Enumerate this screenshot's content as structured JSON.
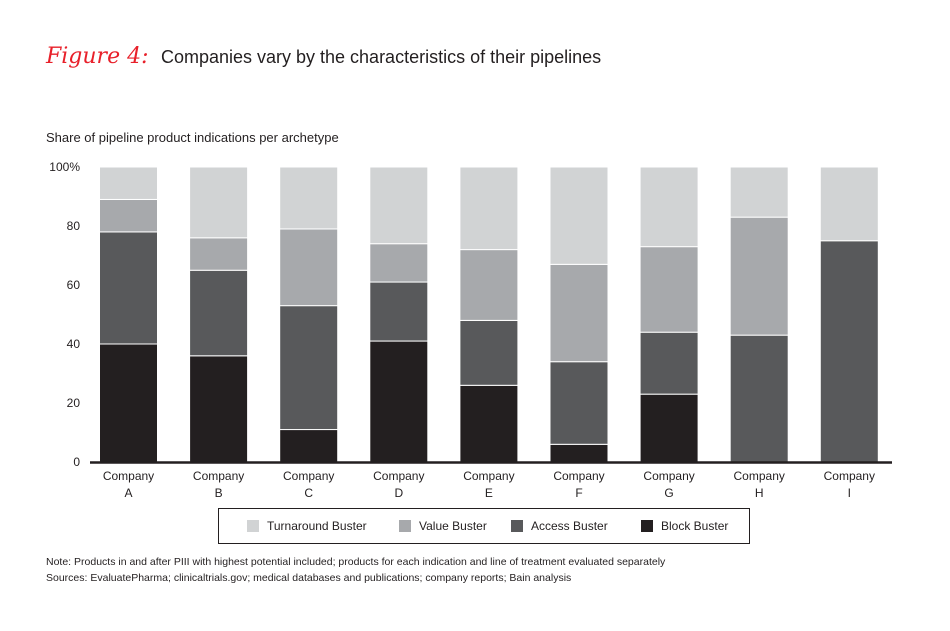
{
  "figure": {
    "label": "Figure 4:",
    "title": "Companies vary by the characteristics of their pipelines"
  },
  "chart_data": {
    "type": "bar",
    "stacked": true,
    "subtitle": "Share of pipeline product indications per archetype",
    "categories": [
      [
        "Company",
        "A"
      ],
      [
        "Company",
        "B"
      ],
      [
        "Company",
        "C"
      ],
      [
        "Company",
        "D"
      ],
      [
        "Company",
        "E"
      ],
      [
        "Company",
        "F"
      ],
      [
        "Company",
        "G"
      ],
      [
        "Company",
        "H"
      ],
      [
        "Company",
        "I"
      ]
    ],
    "series": [
      {
        "name": "Block Buster",
        "color": "#231f20",
        "values": [
          40,
          36,
          11,
          41,
          26,
          6,
          23,
          0,
          0
        ]
      },
      {
        "name": "Access Buster",
        "color": "#58595b",
        "values": [
          38,
          29,
          42,
          20,
          22,
          28,
          21,
          43,
          75
        ]
      },
      {
        "name": "Value Buster",
        "color": "#a7a9ac",
        "values": [
          11,
          11,
          26,
          13,
          24,
          33,
          29,
          40,
          0
        ]
      },
      {
        "name": "Turnaround Buster",
        "color": "#d1d3d4",
        "values": [
          11,
          24,
          21,
          26,
          28,
          33,
          27,
          17,
          25
        ]
      }
    ],
    "legend_order": [
      "Turnaround Buster",
      "Value Buster",
      "Access Buster",
      "Block Buster"
    ],
    "yaxis": {
      "ticks": [
        0,
        20,
        40,
        60,
        80,
        100
      ],
      "tick_labels": [
        "0",
        "20",
        "40",
        "60",
        "80",
        "100%"
      ],
      "ylim": [
        0,
        100
      ]
    },
    "grid": false,
    "legend_position": "bottom"
  },
  "notes": {
    "note": "Note: Products in and after PIII with highest potential included; products for each indication and line of treatment evaluated separately",
    "sources": "Sources: EvaluatePharma; clinicaltrials.gov; medical databases and publications; company reports; Bain analysis"
  }
}
